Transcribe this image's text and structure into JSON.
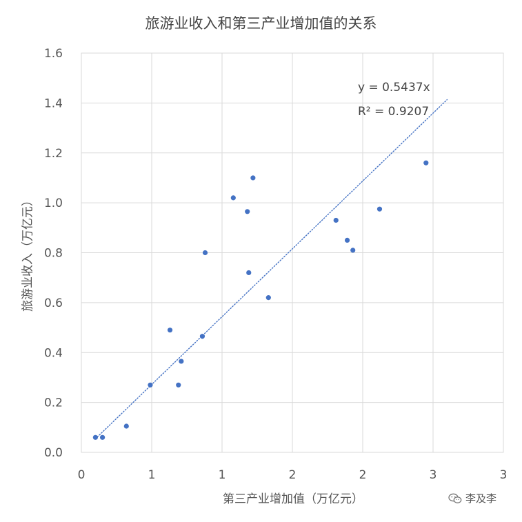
{
  "chart_data": {
    "type": "scatter",
    "title": "旅游业收入和第三产业增加值的关系",
    "xlabel": "第三产业增加值（万亿元）",
    "ylabel": "旅游业收入（万亿元）",
    "xlim": [
      0,
      3
    ],
    "ylim": [
      0,
      1.6
    ],
    "x_ticks": [
      0,
      0.5,
      1,
      1.5,
      2,
      2.5,
      3
    ],
    "x_tick_labels": [
      "0",
      "1",
      "1",
      "2",
      "2",
      "3",
      "3"
    ],
    "y_ticks": [
      0,
      0.2,
      0.4,
      0.6,
      0.8,
      1.0,
      1.2,
      1.4,
      1.6
    ],
    "y_tick_labels": [
      "0.0",
      "0.2",
      "0.4",
      "0.6",
      "0.8",
      "1.0",
      "1.2",
      "1.4",
      "1.6"
    ],
    "grid": true,
    "series": [
      {
        "color": "#4472c4",
        "points": [
          {
            "x": 0.1,
            "y": 0.06
          },
          {
            "x": 0.15,
            "y": 0.06
          },
          {
            "x": 0.32,
            "y": 0.105
          },
          {
            "x": 0.49,
            "y": 0.27
          },
          {
            "x": 0.63,
            "y": 0.49
          },
          {
            "x": 0.69,
            "y": 0.27
          },
          {
            "x": 0.71,
            "y": 0.365
          },
          {
            "x": 0.86,
            "y": 0.465
          },
          {
            "x": 0.88,
            "y": 0.8
          },
          {
            "x": 1.08,
            "y": 1.02
          },
          {
            "x": 1.18,
            "y": 0.965
          },
          {
            "x": 1.19,
            "y": 0.72
          },
          {
            "x": 1.22,
            "y": 1.1
          },
          {
            "x": 1.33,
            "y": 0.62
          },
          {
            "x": 1.81,
            "y": 0.93
          },
          {
            "x": 1.89,
            "y": 0.85
          },
          {
            "x": 1.93,
            "y": 0.81
          },
          {
            "x": 2.12,
            "y": 0.975
          },
          {
            "x": 2.45,
            "y": 1.16
          }
        ]
      }
    ],
    "trendline": {
      "type": "linear-through-origin",
      "slope": 0.5437,
      "x_range": [
        0.1,
        2.6
      ],
      "style": "dotted",
      "color": "#4472c4",
      "equation": "y = 0.5437x",
      "r_squared": "R² = 0.9207"
    }
  },
  "watermark": {
    "text": "李及李",
    "icon": "wechat-icon"
  }
}
